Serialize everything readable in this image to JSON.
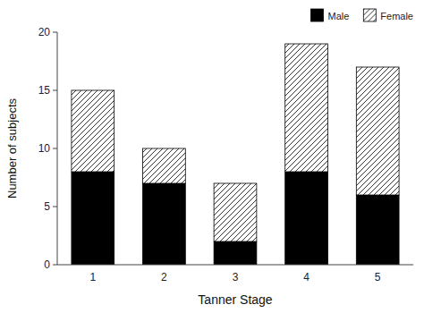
{
  "chart_data": {
    "type": "bar",
    "stacked": true,
    "xlabel": "Tanner Stage",
    "ylabel": "Number of subjects",
    "categories": [
      "1",
      "2",
      "3",
      "4",
      "5"
    ],
    "series": [
      {
        "name": "Male",
        "color": "#000000",
        "values": [
          8,
          7,
          2,
          8,
          6
        ]
      },
      {
        "name": "Female",
        "color": "#ffffff",
        "values": [
          7,
          3,
          5,
          11,
          11
        ]
      }
    ],
    "ylim": [
      0,
      20
    ],
    "yticks": [
      0,
      5,
      10,
      15,
      20
    ],
    "legend": "upper right"
  }
}
